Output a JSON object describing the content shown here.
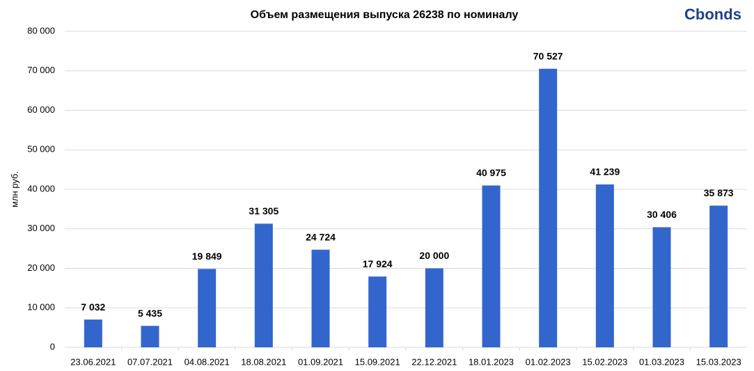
{
  "chart_data": {
    "type": "bar",
    "title": "Объем размещения выпуска 26238 по номиналу",
    "logo": "Cbonds",
    "y_label": "млн руб.",
    "categories": [
      "23.06.2021",
      "07.07.2021",
      "04.08.2021",
      "18.08.2021",
      "01.09.2021",
      "15.09.2021",
      "22.12.2021",
      "18.01.2023",
      "01.02.2023",
      "15.02.2023",
      "01.03.2023",
      "15.03.2023"
    ],
    "values": [
      7032,
      5435,
      19849,
      31305,
      24724,
      17924,
      20000,
      40975,
      70527,
      41239,
      30406,
      35873
    ],
    "value_labels": [
      "7 032",
      "5 435",
      "19 849",
      "31 305",
      "24 724",
      "17 924",
      "20 000",
      "40 975",
      "70 527",
      "41 239",
      "30 406",
      "35 873"
    ],
    "color": "#3366cc",
    "ylim": [
      0,
      80000
    ],
    "yticks": [
      0,
      {
        "value": 10000,
        "label": "10 000"
      },
      {
        "value": 20000,
        "label": "20 000"
      },
      {
        "value": 30000,
        "label": "30 000"
      },
      {
        "value": 40000,
        "label": "40 000"
      },
      {
        "value": 50000,
        "label": "50 000"
      },
      {
        "value": 60000,
        "label": "60 000"
      },
      {
        "value": 70000,
        "label": "70 000"
      },
      {
        "value": 80000,
        "label": "80 000"
      }
    ],
    "grid": true
  }
}
